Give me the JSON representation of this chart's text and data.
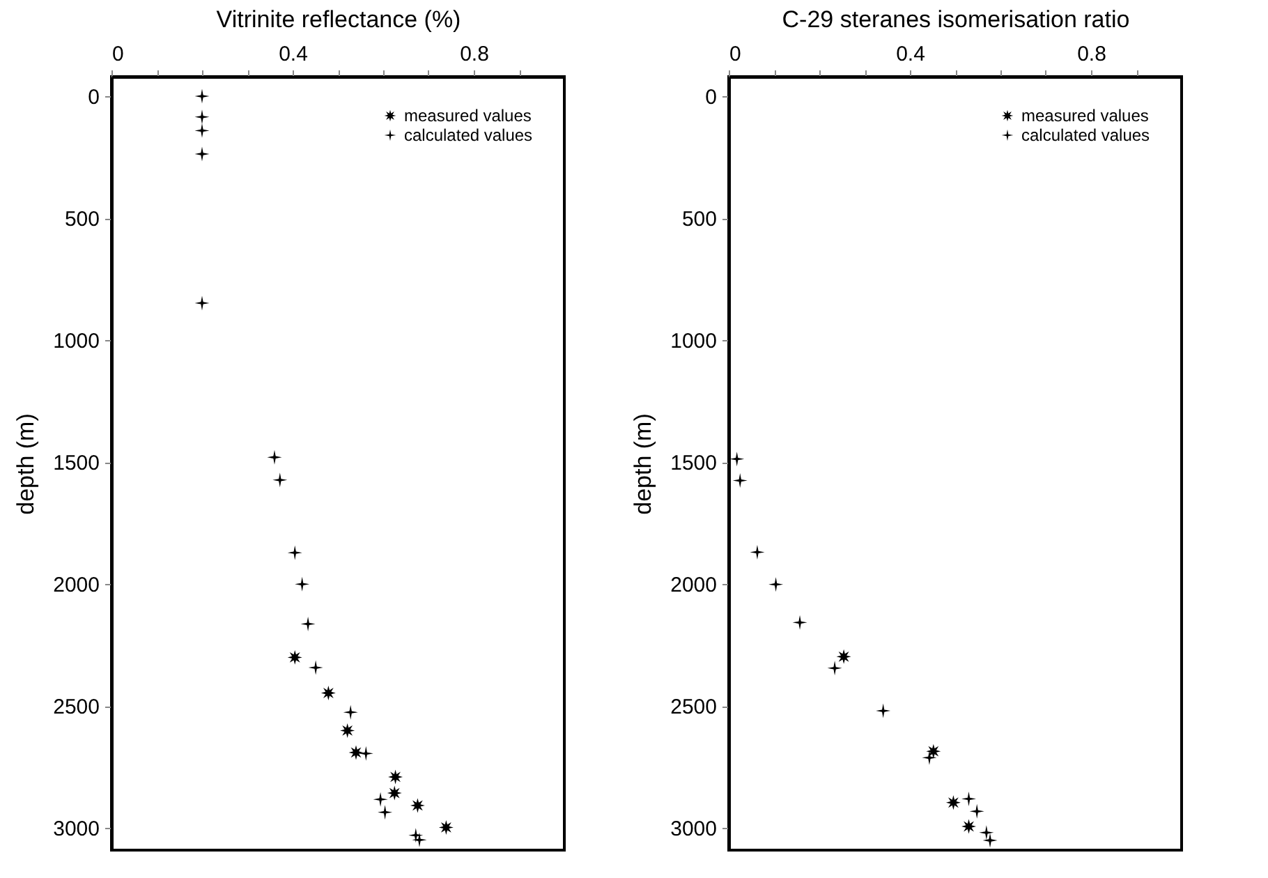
{
  "chart_data": [
    {
      "type": "scatter",
      "xlabel": "Vitrinite reflectance (%)",
      "ylabel": "depth (m)",
      "xlim": [
        0,
        1
      ],
      "xticks": [
        0,
        {
          "value": 0.1,
          "label": null
        },
        {
          "value": 0.2,
          "label": null
        },
        {
          "value": 0.3,
          "label": null
        },
        0.4,
        {
          "value": 0.5,
          "label": null
        },
        {
          "value": 0.6,
          "label": null
        },
        {
          "value": 0.7,
          "label": null
        },
        0.8,
        {
          "value": 0.9,
          "label": null
        }
      ],
      "ylim": [
        3090,
        -80
      ],
      "yticks": [
        0,
        500,
        1000,
        1500,
        2000,
        2500,
        3000
      ],
      "grid": false,
      "legend": "top right",
      "series": [
        {
          "name": "measured values",
          "color": "#000000",
          "marker": "star",
          "x": [
            0.405,
            0.479,
            0.521,
            0.54,
            0.627,
            0.625,
            0.676,
            0.739
          ],
          "values": [
            2300,
            2446,
            2600,
            2690,
            2790,
            2856,
            2907,
            2997
          ]
        },
        {
          "name": "calculated values",
          "color": "#000000",
          "marker": "cross",
          "x": [
            0.2,
            0.2,
            0.2,
            0.2,
            0.2,
            0.36,
            0.372,
            0.405,
            0.421,
            0.434,
            0.451,
            0.528,
            0.562,
            0.594,
            0.604,
            0.672,
            0.68
          ],
          "values": [
            0,
            85,
            141,
            237,
            848,
            1480,
            1573,
            1871,
            2000,
            2163,
            2342,
            2525,
            2694,
            2882,
            2935,
            3029,
            3048
          ]
        }
      ]
    },
    {
      "type": "scatter",
      "xlabel": "C-29 steranes isomerisation ratio",
      "ylabel": "depth (m)",
      "xlim": [
        0,
        1
      ],
      "xticks": [
        0,
        {
          "value": 0.1,
          "label": null
        },
        {
          "value": 0.2,
          "label": null
        },
        {
          "value": 0.3,
          "label": null
        },
        0.4,
        {
          "value": 0.5,
          "label": null
        },
        {
          "value": 0.6,
          "label": null
        },
        {
          "value": 0.7,
          "label": null
        },
        0.8,
        {
          "value": 0.9,
          "label": null
        }
      ],
      "ylim": [
        3090,
        -80
      ],
      "yticks": [
        0,
        500,
        1000,
        1500,
        2000,
        2500,
        3000
      ],
      "grid": false,
      "legend": "top right",
      "series": [
        {
          "name": "measured values",
          "color": "#000000",
          "marker": "star",
          "x": [
            0.254,
            0.452,
            0.496,
            0.53
          ],
          "values": [
            2297,
            2685,
            2895,
            2993
          ]
        },
        {
          "name": "calculated values",
          "color": "#000000",
          "marker": "cross",
          "x": [
            0.018,
            0.025,
            0.063,
            0.104,
            0.157,
            0.234,
            0.341,
            0.443,
            0.53,
            0.548,
            0.569,
            0.577
          ],
          "values": [
            1487,
            1575,
            1869,
            2001,
            2157,
            2344,
            2519,
            2711,
            2880,
            2931,
            3018,
            3050
          ]
        }
      ]
    }
  ]
}
